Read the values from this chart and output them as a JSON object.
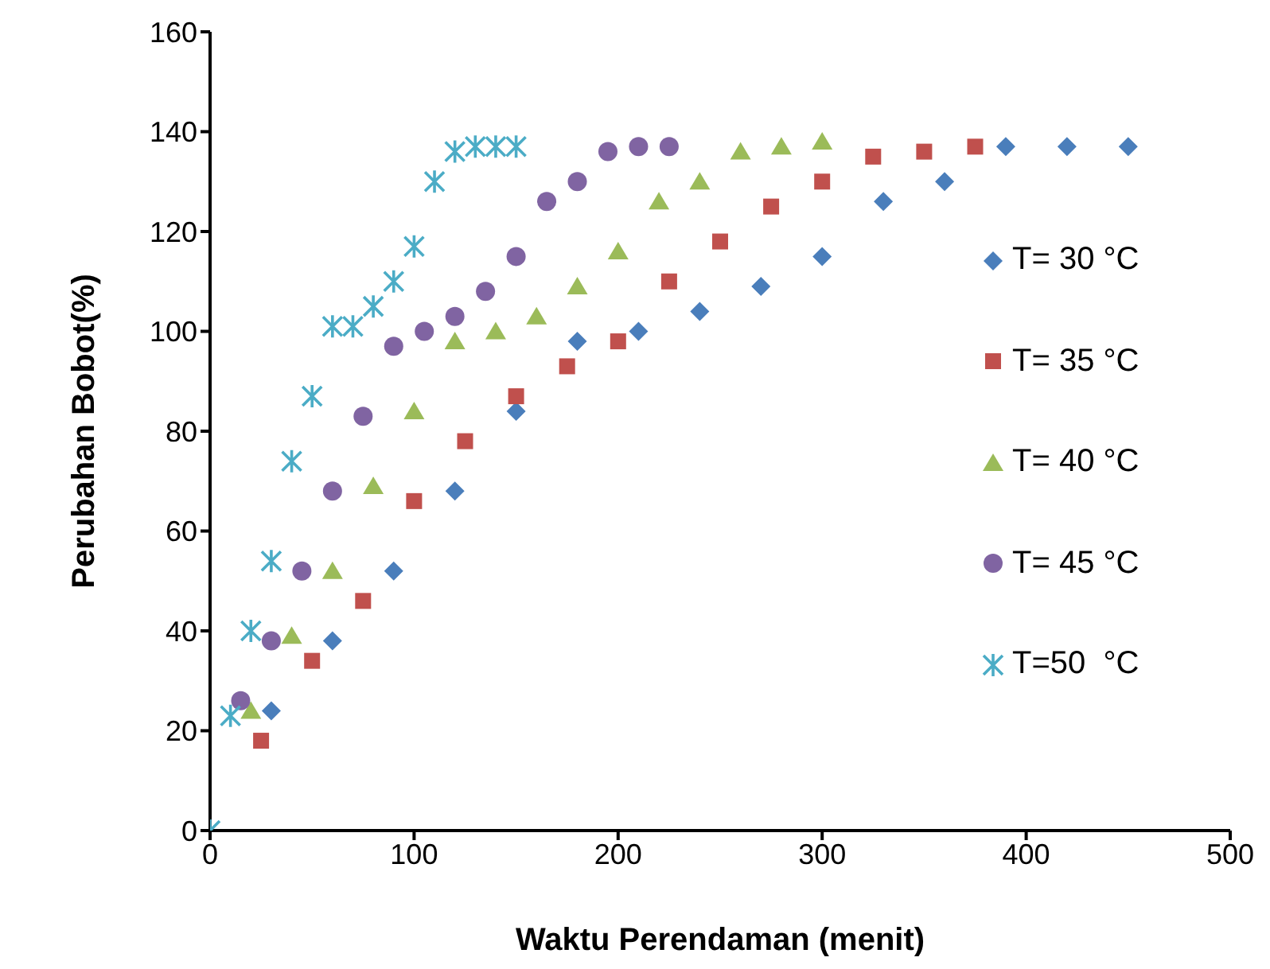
{
  "chart_data": {
    "type": "scatter",
    "xlabel": "Waktu Perendaman (menit)",
    "ylabel": "Perubahan Bobot(%)",
    "xlim": [
      0,
      500
    ],
    "xticks": [
      0,
      100,
      200,
      300,
      400,
      500
    ],
    "ylim": [
      0,
      160
    ],
    "yticks": [
      0,
      20,
      40,
      60,
      80,
      100,
      120,
      140,
      160
    ],
    "grid": false,
    "legend": "right",
    "series": [
      {
        "name": "T= 30 °C",
        "color": "#4a7ebb",
        "marker": "diamond",
        "x": [
          30,
          60,
          90,
          120,
          150,
          180,
          210,
          240,
          270,
          300,
          330,
          360,
          390,
          420,
          450
        ],
        "values": [
          24,
          38,
          52,
          68,
          84,
          98,
          100,
          104,
          109,
          115,
          126,
          130,
          137,
          137,
          137
        ]
      },
      {
        "name": "T= 35 °C",
        "color": "#c0504d",
        "marker": "square",
        "x": [
          25,
          50,
          75,
          100,
          125,
          150,
          175,
          200,
          225,
          250,
          275,
          300,
          325,
          350,
          375
        ],
        "values": [
          18,
          34,
          46,
          66,
          78,
          87,
          93,
          98,
          110,
          118,
          125,
          130,
          135,
          136,
          137
        ]
      },
      {
        "name": "T= 40 °C",
        "color": "#9bbb59",
        "marker": "triangle",
        "x": [
          20,
          40,
          60,
          80,
          100,
          120,
          140,
          160,
          180,
          200,
          220,
          240,
          260,
          280,
          300
        ],
        "values": [
          24,
          39,
          52,
          69,
          84,
          98,
          100,
          103,
          109,
          116,
          126,
          130,
          136,
          137,
          138
        ]
      },
      {
        "name": "T= 45 °C",
        "color": "#8064a2",
        "marker": "circle",
        "x": [
          15,
          30,
          45,
          60,
          75,
          90,
          105,
          120,
          135,
          150,
          165,
          180,
          195,
          210,
          225
        ],
        "values": [
          26,
          38,
          52,
          68,
          83,
          97,
          100,
          103,
          108,
          115,
          126,
          130,
          136,
          137,
          137
        ]
      },
      {
        "name": "T=50  °C",
        "color": "#4bacc6",
        "marker": "cross",
        "x": [
          0,
          10,
          20,
          30,
          40,
          50,
          60,
          70,
          80,
          90,
          100,
          110,
          120,
          130,
          140,
          150
        ],
        "values": [
          0,
          23,
          40,
          54,
          74,
          87,
          101,
          101,
          105,
          110,
          117,
          130,
          136,
          137,
          137,
          137
        ]
      }
    ]
  }
}
